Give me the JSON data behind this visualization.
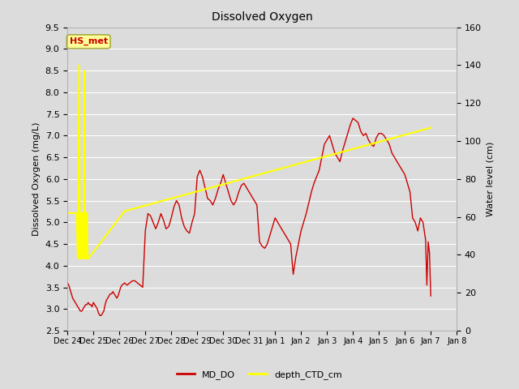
{
  "title": "Dissolved Oxygen",
  "ylabel_left": "Dissolved Oxygen (mg/L)",
  "ylabel_right": "Water level (cm)",
  "ylim_left": [
    2.5,
    9.5
  ],
  "ylim_right": [
    0,
    160
  ],
  "background_color": "#dcdcdc",
  "line_color_do": "#cc0000",
  "line_color_depth": "#ffff00",
  "annotation_text": "HS_met",
  "annotation_bg": "#ffff99",
  "annotation_border": "#aaaa44",
  "annotation_text_color": "#cc0000",
  "legend_do": "MD_DO",
  "legend_depth": "depth_CTD_cm",
  "xtick_labels": [
    "Dec 24",
    "Dec 25",
    "Dec 26",
    "Dec 27",
    "Dec 28",
    "Dec 29",
    "Dec 30",
    "Dec 31",
    "Jan 1",
    "Jan 2",
    "Jan 3",
    "Jan 4",
    "Jan 5",
    "Jan 6",
    "Jan 7",
    "Jan 8"
  ],
  "MD_DO_x": [
    0.0,
    0.05,
    0.1,
    0.15,
    0.2,
    0.25,
    0.3,
    0.35,
    0.4,
    0.45,
    0.5,
    0.55,
    0.6,
    0.65,
    0.7,
    0.75,
    0.8,
    0.85,
    0.9,
    0.95,
    1.0,
    1.05,
    1.1,
    1.15,
    1.2,
    1.25,
    1.3,
    1.35,
    1.4,
    1.45,
    1.5,
    1.55,
    1.6,
    1.65,
    1.7,
    1.75,
    1.8,
    1.85,
    1.9,
    1.95,
    2.0,
    2.05,
    2.1,
    2.2,
    2.3,
    2.4,
    2.5,
    2.6,
    2.7,
    2.8,
    2.9,
    3.0,
    3.1,
    3.2,
    3.3,
    3.4,
    3.5,
    3.6,
    3.7,
    3.8,
    3.9,
    4.0,
    4.1,
    4.2,
    4.3,
    4.4,
    4.5,
    4.6,
    4.7,
    4.8,
    4.9,
    5.0,
    5.1,
    5.2,
    5.3,
    5.4,
    5.5,
    5.6,
    5.7,
    5.8,
    5.9,
    6.0,
    6.1,
    6.2,
    6.3,
    6.4,
    6.5,
    6.6,
    6.7,
    6.8,
    6.9,
    7.0,
    7.1,
    7.2,
    7.3,
    7.4,
    7.5,
    7.6,
    7.7,
    7.8,
    7.9,
    8.0,
    8.1,
    8.2,
    8.3,
    8.4,
    8.5,
    8.6,
    8.7,
    8.8,
    8.9,
    9.0,
    9.1,
    9.2,
    9.3,
    9.4,
    9.5,
    9.6,
    9.7,
    9.8,
    9.9,
    10.0,
    10.1,
    10.2,
    10.3,
    10.4,
    10.5,
    10.6,
    10.7,
    10.8,
    10.9,
    11.0,
    11.1,
    11.2,
    11.3,
    11.4,
    11.5,
    11.6,
    11.7,
    11.8,
    11.9,
    12.0,
    12.1,
    12.2,
    12.3,
    12.4,
    12.5,
    12.6,
    12.7,
    12.8,
    12.9,
    13.0,
    13.1,
    13.2,
    13.3,
    13.4,
    13.5,
    13.6,
    13.7,
    13.8,
    13.85,
    13.9,
    13.95,
    14.0
  ],
  "MD_DO_y": [
    3.6,
    3.55,
    3.45,
    3.35,
    3.25,
    3.2,
    3.15,
    3.1,
    3.05,
    3.0,
    2.95,
    2.95,
    3.0,
    3.05,
    3.1,
    3.1,
    3.15,
    3.1,
    3.1,
    3.05,
    3.15,
    3.1,
    3.05,
    3.0,
    2.9,
    2.85,
    2.85,
    2.9,
    2.95,
    3.1,
    3.2,
    3.25,
    3.3,
    3.35,
    3.35,
    3.4,
    3.35,
    3.3,
    3.25,
    3.3,
    3.4,
    3.5,
    3.55,
    3.6,
    3.55,
    3.6,
    3.65,
    3.65,
    3.6,
    3.55,
    3.5,
    4.8,
    5.2,
    5.15,
    5.0,
    4.85,
    5.0,
    5.2,
    5.05,
    4.85,
    4.9,
    5.1,
    5.35,
    5.5,
    5.4,
    5.1,
    4.9,
    4.8,
    4.75,
    5.0,
    5.2,
    6.05,
    6.2,
    6.05,
    5.8,
    5.55,
    5.5,
    5.4,
    5.55,
    5.75,
    5.9,
    6.1,
    5.9,
    5.7,
    5.5,
    5.4,
    5.5,
    5.7,
    5.85,
    5.9,
    5.8,
    5.7,
    5.6,
    5.5,
    5.4,
    4.55,
    4.45,
    4.4,
    4.5,
    4.7,
    4.9,
    5.1,
    5.0,
    4.9,
    4.8,
    4.7,
    4.6,
    4.5,
    3.8,
    4.2,
    4.5,
    4.8,
    5.0,
    5.2,
    5.45,
    5.7,
    5.9,
    6.05,
    6.2,
    6.5,
    6.8,
    6.9,
    7.0,
    6.8,
    6.6,
    6.5,
    6.4,
    6.65,
    6.85,
    7.05,
    7.25,
    7.4,
    7.35,
    7.3,
    7.1,
    7.0,
    7.05,
    6.9,
    6.8,
    6.75,
    6.95,
    7.05,
    7.05,
    7.0,
    6.9,
    6.8,
    6.6,
    6.5,
    6.4,
    6.3,
    6.2,
    6.1,
    5.9,
    5.7,
    5.1,
    5.0,
    4.8,
    5.1,
    5.0,
    4.6,
    3.55,
    4.55,
    4.3,
    3.3
  ],
  "depth_x": [
    0.0,
    0.35,
    0.4,
    0.45,
    0.48,
    0.5,
    0.53,
    0.55,
    0.58,
    0.6,
    0.63,
    0.65,
    0.68,
    0.7,
    0.73,
    0.75,
    0.78,
    0.8,
    2.2,
    14.0
  ],
  "depth_y_cm": [
    62,
    62,
    38,
    140,
    38,
    62,
    38,
    62,
    38,
    62,
    38,
    137,
    38,
    62,
    38,
    62,
    38,
    38,
    63,
    107
  ]
}
